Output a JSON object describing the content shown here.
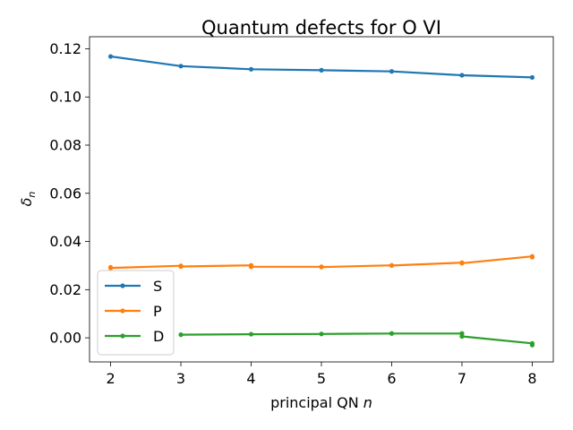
{
  "chart_data": {
    "type": "line",
    "title": "Quantum defects for O VI",
    "xlabel_prefix": "principal QN ",
    "xlabel_var": "n",
    "ylabel_symbol": "δ",
    "ylabel_sub": "n",
    "xlim": [
      1.7,
      8.3
    ],
    "ylim": [
      -0.01,
      0.125
    ],
    "xticks": [
      2,
      3,
      4,
      5,
      6,
      7,
      8
    ],
    "xtick_labels": [
      "2",
      "3",
      "4",
      "5",
      "6",
      "7",
      "8"
    ],
    "yticks": [
      0.0,
      0.02,
      0.04,
      0.06,
      0.08,
      0.1,
      0.12
    ],
    "ytick_labels": [
      "0.00",
      "0.02",
      "0.04",
      "0.06",
      "0.08",
      "0.10",
      "0.12"
    ],
    "legend_position": "lower-left",
    "series": [
      {
        "name": "S",
        "color": "#1f77b4",
        "points": [
          [
            2,
            0.1168
          ],
          [
            3,
            0.1128
          ],
          [
            4,
            0.1115
          ],
          [
            5,
            0.1111
          ],
          [
            6,
            0.1106
          ],
          [
            7,
            0.109
          ],
          [
            8,
            0.1081
          ]
        ]
      },
      {
        "name": "P",
        "color": "#ff7f0e",
        "points": [
          [
            2,
            0.0293
          ],
          [
            2,
            0.029
          ],
          [
            3,
            0.0299
          ],
          [
            3,
            0.0296
          ],
          [
            4,
            0.0301
          ],
          [
            4,
            0.0295
          ],
          [
            5,
            0.0295
          ],
          [
            5,
            0.0294
          ],
          [
            6,
            0.0301
          ],
          [
            6,
            0.03
          ],
          [
            7,
            0.0312
          ],
          [
            7,
            0.031
          ],
          [
            8,
            0.0338
          ],
          [
            8,
            0.0335
          ]
        ]
      },
      {
        "name": "D",
        "color": "#2ca02c",
        "points": [
          [
            3,
            0.0013
          ],
          [
            4,
            0.0015
          ],
          [
            5,
            0.0016
          ],
          [
            6,
            0.0018
          ],
          [
            7,
            0.0018
          ],
          [
            7,
            0.0006
          ],
          [
            8,
            -0.0023
          ],
          [
            8,
            -0.003
          ]
        ]
      }
    ]
  }
}
